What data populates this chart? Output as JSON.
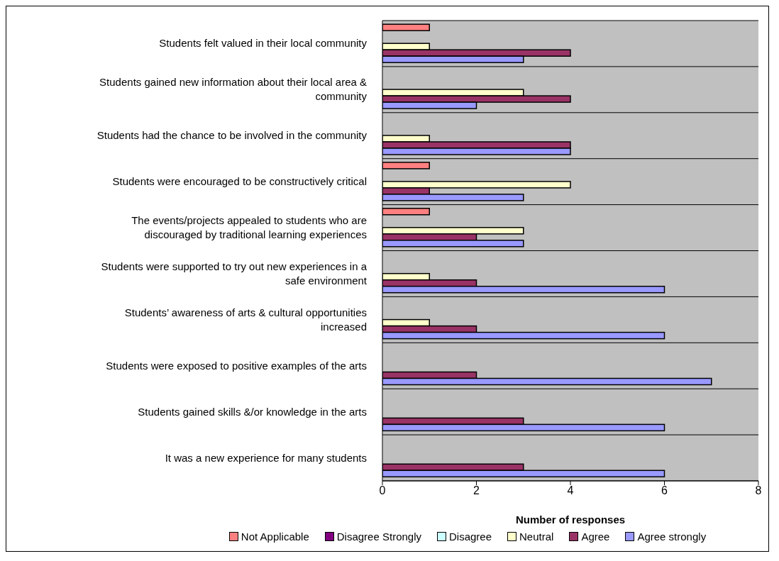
{
  "chart_data": {
    "type": "bar",
    "orientation": "horizontal",
    "xlabel": "Number of responses",
    "categories": [
      "Students felt valued in their local community",
      "Students gained new information about their local area & community",
      "Students had the chance to be involved in the community",
      "Students were encouraged to be constructively critical",
      "The events/projects appealed to students who are discouraged by traditional learning experiences",
      "Students were supported to try out new experiences in a safe environment",
      "Students’ awareness of arts & cultural opportunities increased",
      "Students were exposed to positive examples of the arts",
      "Students gained skills &/or knowledge in the arts",
      "It was a new experience for many students"
    ],
    "series": [
      {
        "name": "Not Applicable",
        "color": "#ff8080",
        "values": [
          1,
          0,
          0,
          1,
          1,
          0,
          0,
          0,
          0,
          0
        ]
      },
      {
        "name": "Disagree Strongly",
        "color": "#800080",
        "values": [
          0,
          0,
          0,
          0,
          0,
          0,
          0,
          0,
          0,
          0
        ]
      },
      {
        "name": "Disagree",
        "color": "#ccffff",
        "values": [
          0,
          0,
          0,
          0,
          0,
          0,
          0,
          0,
          0,
          0
        ]
      },
      {
        "name": "Neutral",
        "color": "#ffffcc",
        "values": [
          1,
          3,
          1,
          4,
          3,
          1,
          1,
          0,
          0,
          0
        ]
      },
      {
        "name": "Agree",
        "color": "#993366",
        "values": [
          4,
          4,
          4,
          1,
          2,
          2,
          2,
          2,
          3,
          3
        ]
      },
      {
        "name": "Agree strongly",
        "color": "#9999ff",
        "values": [
          3,
          2,
          4,
          3,
          3,
          6,
          6,
          7,
          6,
          6
        ]
      }
    ],
    "xlim": [
      0,
      8
    ],
    "xticks": [
      0,
      2,
      4,
      6,
      8
    ],
    "grid": "y",
    "legend": "bottom"
  }
}
